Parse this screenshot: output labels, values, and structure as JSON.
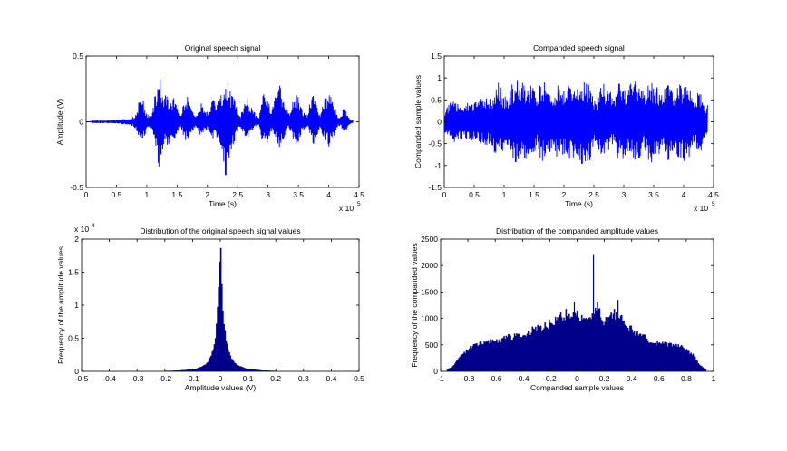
{
  "chart_data": [
    {
      "type": "line",
      "title": "Original speech signal",
      "xlabel": "Time (s)",
      "ylabel": "Amplitude (V)",
      "x_exponent_label": "x 10",
      "x_exponent": "5",
      "xlim": [
        0,
        4.5
      ],
      "ylim": [
        -0.5,
        0.5
      ],
      "xticks": [
        "0",
        "0.5",
        "1",
        "1.5",
        "2",
        "2.5",
        "3",
        "3.5",
        "4",
        "4.5"
      ],
      "yticks": [
        "-0.5",
        "0",
        "0.5"
      ],
      "color": "#0000ff",
      "grid": false,
      "envelope": {
        "x": [
          0,
          0.05,
          0.1,
          0.15,
          0.2,
          0.25,
          0.3,
          0.35,
          0.4,
          0.45,
          0.5,
          0.55,
          0.6,
          0.65,
          0.7,
          0.75,
          0.8,
          0.85,
          0.9,
          0.95,
          1.0,
          1.05,
          1.1,
          1.15,
          1.2,
          1.25,
          1.3,
          1.35,
          1.4,
          1.45,
          1.5,
          1.55,
          1.6,
          1.65,
          1.7,
          1.75,
          1.8,
          1.85,
          1.9,
          1.95,
          2.0,
          2.05,
          2.1,
          2.15,
          2.2,
          2.25,
          2.3,
          2.35,
          2.4,
          2.45,
          2.5,
          2.55,
          2.6,
          2.65,
          2.7,
          2.75,
          2.8,
          2.85,
          2.9,
          2.95,
          3.0,
          3.05,
          3.1,
          3.15,
          3.2,
          3.25,
          3.3,
          3.35,
          3.4,
          3.45,
          3.5,
          3.55,
          3.6,
          3.65,
          3.7,
          3.75,
          3.8,
          3.85,
          3.9,
          3.95,
          4.0,
          4.05,
          4.1,
          4.15,
          4.2,
          4.25,
          4.3,
          4.35,
          4.4
        ],
        "upper": [
          0,
          0,
          0.005,
          0.01,
          0.01,
          0.01,
          0.015,
          0.01,
          0.015,
          0.01,
          0.02,
          0.015,
          0.02,
          0.02,
          0.02,
          0.03,
          0.05,
          0.1,
          0.28,
          0.15,
          0.06,
          0.05,
          0.1,
          0.25,
          0.38,
          0.25,
          0.2,
          0.22,
          0.16,
          0.2,
          0.12,
          0.05,
          0.12,
          0.2,
          0.18,
          0.1,
          0.05,
          0.1,
          0.15,
          0.1,
          0.08,
          0.12,
          0.2,
          0.15,
          0.28,
          0.22,
          0.35,
          0.3,
          0.2,
          0.22,
          0.05,
          0.06,
          0.12,
          0.2,
          0.15,
          0.1,
          0.05,
          0.03,
          0.18,
          0.25,
          0.2,
          0.1,
          0.15,
          0.26,
          0.28,
          0.18,
          0.1,
          0.06,
          0.15,
          0.2,
          0.24,
          0.1,
          0.08,
          0.05,
          0.18,
          0.22,
          0.15,
          0.05,
          0.12,
          0.2,
          0.25,
          0.2,
          0.12,
          0.03,
          0.05,
          0.12,
          0.08,
          0.02,
          0.01
        ],
        "lower": [
          0,
          0,
          -0.005,
          -0.01,
          -0.01,
          -0.01,
          -0.01,
          -0.01,
          -0.015,
          -0.01,
          -0.015,
          -0.015,
          -0.02,
          -0.02,
          -0.02,
          -0.03,
          -0.05,
          -0.08,
          -0.22,
          -0.15,
          -0.05,
          -0.05,
          -0.1,
          -0.2,
          -0.38,
          -0.25,
          -0.18,
          -0.2,
          -0.12,
          -0.18,
          -0.1,
          -0.04,
          -0.1,
          -0.15,
          -0.14,
          -0.08,
          -0.04,
          -0.08,
          -0.12,
          -0.08,
          -0.06,
          -0.1,
          -0.14,
          -0.12,
          -0.2,
          -0.25,
          -0.46,
          -0.3,
          -0.2,
          -0.16,
          -0.04,
          -0.05,
          -0.1,
          -0.15,
          -0.12,
          -0.08,
          -0.04,
          -0.03,
          -0.14,
          -0.2,
          -0.16,
          -0.08,
          -0.12,
          -0.18,
          -0.22,
          -0.14,
          -0.08,
          -0.05,
          -0.12,
          -0.15,
          -0.2,
          -0.08,
          -0.06,
          -0.04,
          -0.12,
          -0.18,
          -0.14,
          -0.04,
          -0.1,
          -0.15,
          -0.2,
          -0.15,
          -0.1,
          -0.03,
          -0.04,
          -0.08,
          -0.06,
          -0.02,
          -0.01
        ]
      }
    },
    {
      "type": "line",
      "title": "Companded speech signal",
      "xlabel": "Time (s)",
      "ylabel": "Companded sample values",
      "x_exponent_label": "x 10",
      "x_exponent": "5",
      "xlim": [
        0,
        4.5
      ],
      "ylim": [
        -1.5,
        1.5
      ],
      "xticks": [
        "0",
        "0.5",
        "1",
        "1.5",
        "2",
        "2.5",
        "3",
        "3.5",
        "4",
        "4.5"
      ],
      "yticks": [
        "-1.5",
        "-1",
        "-0.5",
        "0",
        "0.5",
        "1",
        "1.5"
      ],
      "color": "#0000ff",
      "grid": false,
      "envelope": {
        "x": [
          0,
          0.05,
          0.1,
          0.15,
          0.2,
          0.25,
          0.3,
          0.35,
          0.4,
          0.45,
          0.5,
          0.55,
          0.6,
          0.65,
          0.7,
          0.75,
          0.8,
          0.85,
          0.9,
          0.95,
          1.0,
          1.05,
          1.1,
          1.15,
          1.2,
          1.25,
          1.3,
          1.35,
          1.4,
          1.45,
          1.5,
          1.55,
          1.6,
          1.65,
          1.7,
          1.75,
          1.8,
          1.85,
          1.9,
          1.95,
          2.0,
          2.05,
          2.1,
          2.15,
          2.2,
          2.25,
          2.3,
          2.35,
          2.4,
          2.45,
          2.5,
          2.55,
          2.6,
          2.65,
          2.7,
          2.75,
          2.8,
          2.85,
          2.9,
          2.95,
          3.0,
          3.05,
          3.1,
          3.15,
          3.2,
          3.25,
          3.3,
          3.35,
          3.4,
          3.45,
          3.5,
          3.55,
          3.6,
          3.65,
          3.7,
          3.75,
          3.8,
          3.85,
          3.9,
          3.95,
          4.0,
          4.05,
          4.1,
          4.15,
          4.2,
          4.25,
          4.3,
          4.35,
          4.4
        ],
        "upper": [
          0.25,
          0.4,
          0.45,
          0.5,
          0.4,
          0.42,
          0.45,
          0.4,
          0.5,
          0.42,
          0.48,
          0.45,
          0.55,
          0.5,
          0.55,
          0.5,
          0.6,
          0.75,
          0.95,
          0.8,
          0.6,
          0.6,
          0.78,
          0.92,
          0.98,
          0.95,
          0.9,
          0.93,
          0.85,
          0.9,
          0.88,
          0.6,
          0.85,
          0.92,
          0.9,
          0.8,
          0.6,
          0.8,
          0.88,
          0.8,
          0.75,
          0.85,
          0.92,
          0.88,
          0.95,
          0.9,
          0.97,
          0.95,
          0.9,
          0.88,
          0.5,
          0.55,
          0.8,
          0.9,
          0.85,
          0.8,
          0.6,
          0.55,
          0.88,
          0.95,
          0.9,
          0.8,
          0.85,
          0.93,
          0.95,
          0.88,
          0.8,
          0.6,
          0.85,
          0.92,
          0.95,
          0.8,
          0.75,
          0.6,
          0.88,
          0.92,
          0.88,
          0.55,
          0.8,
          0.9,
          0.94,
          0.9,
          0.8,
          0.5,
          0.55,
          0.75,
          0.7,
          0.45,
          0.4
        ],
        "lower": [
          -0.25,
          -0.4,
          -0.45,
          -0.5,
          -0.4,
          -0.42,
          -0.45,
          -0.4,
          -0.5,
          -0.42,
          -0.48,
          -0.45,
          -0.55,
          -0.5,
          -0.55,
          -0.5,
          -0.6,
          -0.75,
          -0.95,
          -0.8,
          -0.6,
          -0.6,
          -0.78,
          -0.92,
          -1.02,
          -0.95,
          -0.9,
          -0.93,
          -0.85,
          -0.9,
          -0.88,
          -0.6,
          -0.85,
          -0.92,
          -0.9,
          -0.8,
          -0.6,
          -0.8,
          -0.88,
          -0.8,
          -0.75,
          -0.85,
          -0.92,
          -0.88,
          -0.95,
          -0.9,
          -1.05,
          -0.95,
          -0.9,
          -0.88,
          -0.5,
          -0.55,
          -0.8,
          -0.9,
          -0.85,
          -0.8,
          -0.6,
          -0.55,
          -0.88,
          -0.95,
          -0.9,
          -0.8,
          -0.85,
          -0.93,
          -0.95,
          -0.88,
          -0.8,
          -0.6,
          -0.85,
          -0.92,
          -0.95,
          -0.8,
          -0.75,
          -0.6,
          -0.88,
          -0.92,
          -0.88,
          -0.55,
          -0.8,
          -0.9,
          -0.94,
          -0.9,
          -0.8,
          -0.5,
          -0.55,
          -0.75,
          -0.7,
          -0.45,
          -0.4
        ]
      }
    },
    {
      "type": "bar",
      "title": "Distribution of the original speech signal values",
      "xlabel": "Amplitude values (V)",
      "ylabel": "Frequency of the amplitude values",
      "y_exponent_label": "x 10",
      "y_exponent": "4",
      "xlim": [
        -0.5,
        0.5
      ],
      "ylim": [
        0,
        2
      ],
      "xticks": [
        "-0.5",
        "-0.4",
        "-0.3",
        "-0.2",
        "-0.1",
        "0",
        "0.1",
        "0.2",
        "0.3",
        "0.4",
        "0.5"
      ],
      "yticks": [
        "0",
        "0.5",
        "1",
        "1.5",
        "2"
      ],
      "color": "#00008b",
      "grid": false,
      "x": [
        -0.2,
        -0.15,
        -0.1,
        -0.08,
        -0.06,
        -0.05,
        -0.04,
        -0.03,
        -0.02,
        -0.015,
        -0.01,
        -0.005,
        0,
        0.005,
        0.01,
        0.015,
        0.02,
        0.03,
        0.04,
        0.05,
        0.06,
        0.08,
        0.1,
        0.15,
        0.2
      ],
      "values": [
        0.005,
        0.01,
        0.03,
        0.05,
        0.08,
        0.12,
        0.18,
        0.28,
        0.45,
        0.6,
        0.9,
        1.3,
        1.9,
        1.4,
        0.95,
        0.65,
        0.48,
        0.3,
        0.2,
        0.14,
        0.09,
        0.06,
        0.035,
        0.012,
        0.005
      ]
    },
    {
      "type": "bar",
      "title": "Distribution of the companded amplitude values",
      "xlabel": "Companded sample values",
      "ylabel": "Frequency of the companded values",
      "xlim": [
        -1,
        1
      ],
      "ylim": [
        0,
        2500
      ],
      "xticks": [
        "-1",
        "-0.8",
        "-0.6",
        "-0.4",
        "-0.2",
        "0",
        "0.2",
        "0.4",
        "0.6",
        "0.8",
        "1"
      ],
      "yticks": [
        "0",
        "500",
        "1000",
        "1500",
        "2000",
        "2500"
      ],
      "color": "#00008b",
      "grid": false,
      "x": [
        -0.95,
        -0.9,
        -0.85,
        -0.8,
        -0.75,
        -0.7,
        -0.65,
        -0.6,
        -0.55,
        -0.5,
        -0.45,
        -0.4,
        -0.35,
        -0.3,
        -0.25,
        -0.2,
        -0.15,
        -0.1,
        -0.05,
        0,
        0.05,
        0.1,
        0.15,
        0.2,
        0.25,
        0.3,
        0.35,
        0.4,
        0.45,
        0.5,
        0.55,
        0.6,
        0.65,
        0.7,
        0.75,
        0.8,
        0.85,
        0.9,
        0.95
      ],
      "values": [
        30,
        120,
        300,
        420,
        480,
        530,
        550,
        580,
        600,
        640,
        650,
        680,
        740,
        800,
        830,
        900,
        980,
        1050,
        1100,
        1050,
        950,
        1000,
        1200,
        900,
        1050,
        1100,
        900,
        800,
        700,
        620,
        560,
        520,
        500,
        480,
        470,
        420,
        300,
        120,
        20
      ],
      "spikes": [
        {
          "x": -0.02,
          "value": 1320
        },
        {
          "x": 0.0,
          "value": 1150
        },
        {
          "x": 0.12,
          "value": 2200
        },
        {
          "x": 0.3,
          "value": 1350
        }
      ]
    }
  ]
}
